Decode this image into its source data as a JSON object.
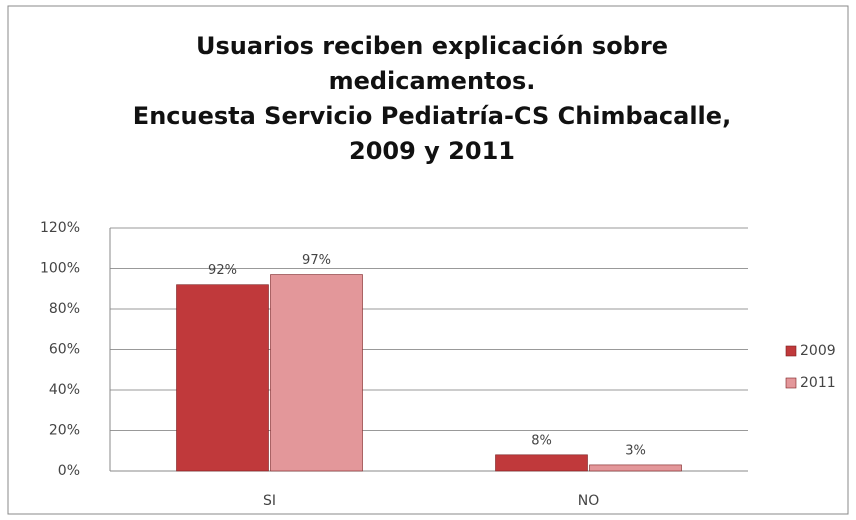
{
  "chart_data": {
    "type": "bar",
    "title": [
      "Usuarios reciben explicación sobre",
      "medicamentos.",
      "Encuesta Servicio Pediatría-CS Chimbacalle,",
      "2009 y 2011"
    ],
    "categories": [
      "SI",
      "NO"
    ],
    "series": [
      {
        "name": "2009",
        "color": "#c0393b",
        "values": [
          92,
          8
        ],
        "value_labels": [
          "92%",
          "8%"
        ]
      },
      {
        "name": "2011",
        "color": "#e3979a",
        "values": [
          97,
          3
        ],
        "value_labels": [
          "97%",
          "3%"
        ]
      }
    ],
    "ylim": [
      0,
      120
    ],
    "yticks": [
      {
        "value": 0,
        "label": "0%"
      },
      {
        "value": 20,
        "label": "20%"
      },
      {
        "value": 40,
        "label": "40%"
      },
      {
        "value": 60,
        "label": "60%"
      },
      {
        "value": 80,
        "label": "80%"
      },
      {
        "value": 100,
        "label": "100%"
      },
      {
        "value": 120,
        "label": "120%"
      }
    ],
    "grid": true,
    "legend": "right"
  }
}
